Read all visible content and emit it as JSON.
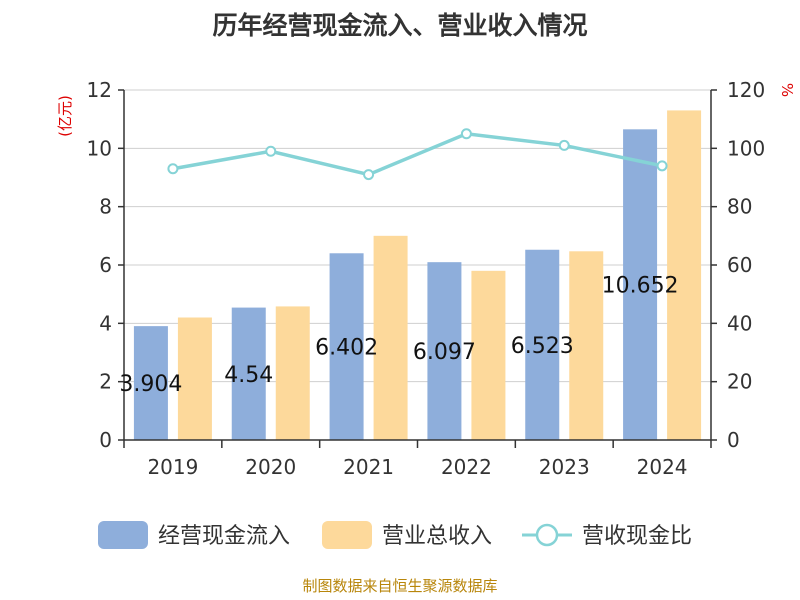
{
  "chart_data": {
    "type": "bar",
    "title": "历年经营现金流入、营业收入情况",
    "categories": [
      "2019",
      "2020",
      "2021",
      "2022",
      "2023",
      "2024"
    ],
    "y_left": {
      "unit_label": "(亿元)",
      "ylim": [
        0,
        12
      ],
      "ticks": [
        0,
        2,
        4,
        6,
        8,
        10,
        12
      ]
    },
    "y_right": {
      "unit_label": "%",
      "ylim": [
        0,
        120
      ],
      "ticks": [
        0,
        20,
        40,
        60,
        80,
        100,
        120
      ]
    },
    "grid": true,
    "legend_position": "bottom",
    "series": [
      {
        "name": "经营现金流入",
        "type": "bar",
        "axis": "left",
        "color": "#8eaedb",
        "values": [
          3.904,
          4.54,
          6.402,
          6.097,
          6.523,
          10.652
        ],
        "labels": [
          "3.904",
          "4.54",
          "6.402",
          "6.097",
          "6.523",
          "10.652"
        ]
      },
      {
        "name": "营业总收入",
        "type": "bar",
        "axis": "left",
        "color": "#fdd99b",
        "values": [
          4.2,
          4.58,
          7.0,
          5.8,
          6.47,
          11.3
        ]
      },
      {
        "name": "营收现金比",
        "type": "line",
        "axis": "right",
        "color": "#85d3d6",
        "values": [
          93,
          99,
          91,
          105,
          101,
          94
        ]
      }
    ]
  },
  "footer": {
    "source": "制图数据来自恒生聚源数据库"
  }
}
